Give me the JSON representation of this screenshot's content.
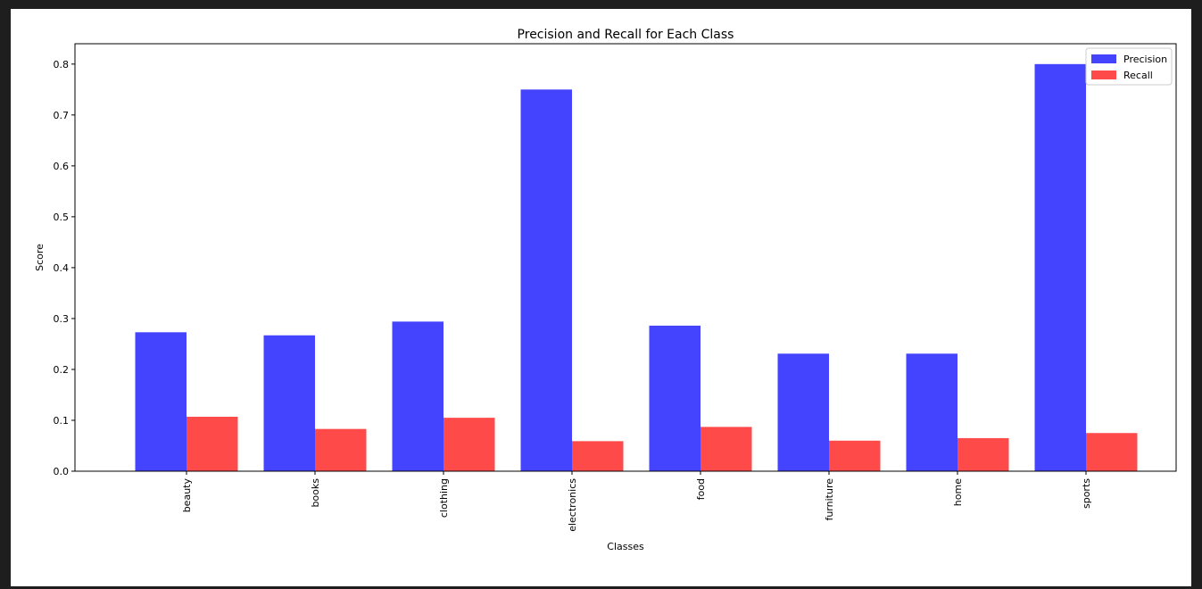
{
  "chart_data": {
    "type": "bar",
    "title": "Precision and Recall for Each Class",
    "xlabel": "Classes",
    "ylabel": "Score",
    "categories": [
      "beauty",
      "books",
      "clothing",
      "electronics",
      "food",
      "furniture",
      "home",
      "sports"
    ],
    "series": [
      {
        "name": "Precision",
        "color": "#4444ff",
        "values": [
          0.273,
          0.267,
          0.294,
          0.75,
          0.286,
          0.231,
          0.231,
          0.8
        ]
      },
      {
        "name": "Recall",
        "color": "#ff4a4a",
        "values": [
          0.107,
          0.083,
          0.105,
          0.059,
          0.087,
          0.06,
          0.065,
          0.075
        ]
      }
    ],
    "ylim": [
      0,
      0.84
    ],
    "yticks": [
      "0.0",
      "0.1",
      "0.2",
      "0.3",
      "0.4",
      "0.5",
      "0.6",
      "0.7",
      "0.8"
    ],
    "legend_position": "top-right",
    "grid": false
  }
}
